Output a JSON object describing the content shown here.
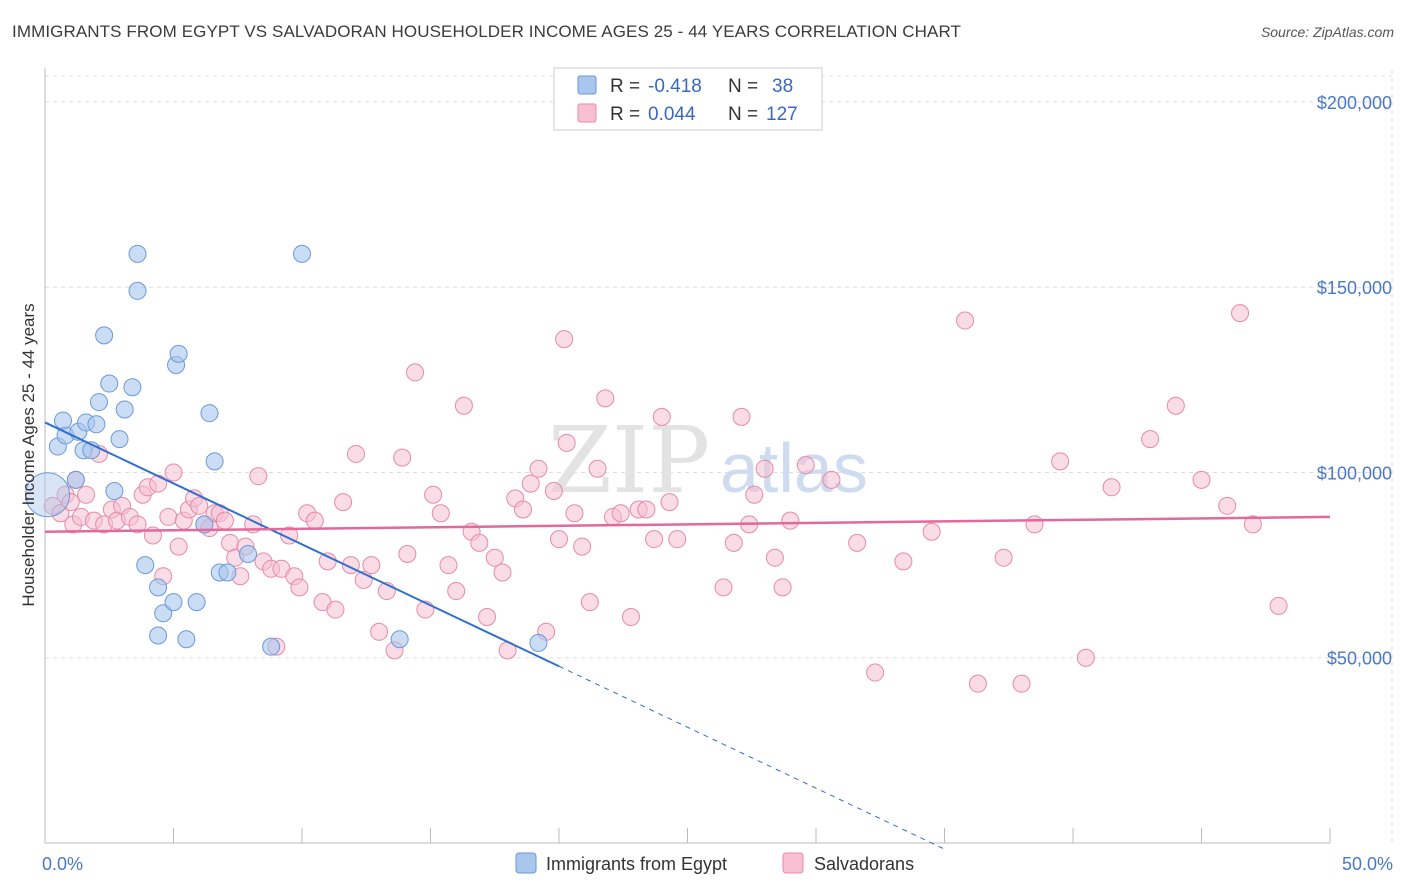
{
  "title": "IMMIGRANTS FROM EGYPT VS SALVADORAN HOUSEHOLDER INCOME AGES 25 - 44 YEARS CORRELATION CHART",
  "source": "Source: ZipAtlas.com",
  "watermark": {
    "zip": "ZIP",
    "atlas": "atlas"
  },
  "colors": {
    "egypt_fill": "#a9c6ec",
    "egypt_stroke": "#6a9ad8",
    "egypt_line": "#2f6fd0",
    "salv_fill": "#f6c0d2",
    "salv_stroke": "#e68aa8",
    "salv_line": "#e2699a",
    "grid": "#dddddd",
    "tick_text": "#4a78c8"
  },
  "stats": {
    "r_label": "R =",
    "n_label": "N =",
    "egypt": {
      "r": "-0.418",
      "n": "38"
    },
    "salvadoran": {
      "r": "0.044",
      "n": "127"
    }
  },
  "legend": {
    "egypt": "Immigrants from Egypt",
    "salvadoran": "Salvadorans"
  },
  "chart_data": {
    "type": "scatter",
    "title": "IMMIGRANTS FROM EGYPT VS SALVADORAN HOUSEHOLDER INCOME AGES 25 - 44 YEARS CORRELATION CHART",
    "xlabel": "",
    "ylabel": "Householder Income Ages 25 - 44 years",
    "xlim": [
      0,
      50
    ],
    "ylim": [
      0,
      207000
    ],
    "x_tick_labels": [
      "0.0%",
      "50.0%"
    ],
    "y_ticks": [
      50000,
      100000,
      150000,
      200000
    ],
    "y_tick_labels": [
      "$50,000",
      "$100,000",
      "$150,000",
      "$200,000"
    ],
    "grid": true,
    "series": [
      {
        "name": "Immigrants from Egypt",
        "trend": {
          "x0": 0,
          "y0": 113500,
          "x1": 20,
          "y1": 47700,
          "dashed_to_x": 35
        },
        "points": [
          [
            0.1,
            94000
          ],
          [
            0.5,
            107000
          ],
          [
            0.8,
            110000
          ],
          [
            0.7,
            114000
          ],
          [
            1.3,
            111000
          ],
          [
            1.6,
            113500
          ],
          [
            2.0,
            113000
          ],
          [
            1.5,
            106000
          ],
          [
            1.8,
            106000
          ],
          [
            2.1,
            119000
          ],
          [
            2.3,
            137000
          ],
          [
            2.5,
            124000
          ],
          [
            2.9,
            109000
          ],
          [
            3.1,
            117000
          ],
          [
            3.4,
            123000
          ],
          [
            3.6,
            149000
          ],
          [
            3.6,
            159000
          ],
          [
            5.1,
            129000
          ],
          [
            5.2,
            132000
          ],
          [
            6.4,
            116000
          ],
          [
            6.6,
            103000
          ],
          [
            1.2,
            98000
          ],
          [
            2.7,
            95000
          ],
          [
            3.9,
            75000
          ],
          [
            4.4,
            69000
          ],
          [
            4.6,
            62000
          ],
          [
            4.4,
            56000
          ],
          [
            5.0,
            65000
          ],
          [
            5.5,
            55000
          ],
          [
            5.9,
            65000
          ],
          [
            6.2,
            86000
          ],
          [
            6.8,
            73000
          ],
          [
            7.1,
            73000
          ],
          [
            7.9,
            78000
          ],
          [
            8.8,
            53000
          ],
          [
            10.0,
            159000
          ],
          [
            13.8,
            55000
          ],
          [
            19.2,
            54000
          ]
        ]
      },
      {
        "name": "Salvadorans",
        "trend": {
          "x0": 0,
          "y0": 84000,
          "x1": 50,
          "y1": 88000
        },
        "points": [
          [
            0.3,
            91000
          ],
          [
            0.6,
            89000
          ],
          [
            0.8,
            94000
          ],
          [
            1.0,
            92000
          ],
          [
            1.1,
            86000
          ],
          [
            1.2,
            98000
          ],
          [
            1.4,
            88000
          ],
          [
            1.6,
            94000
          ],
          [
            1.9,
            87000
          ],
          [
            2.1,
            105000
          ],
          [
            2.3,
            86000
          ],
          [
            2.6,
            90000
          ],
          [
            2.8,
            87000
          ],
          [
            3.0,
            91000
          ],
          [
            3.3,
            88000
          ],
          [
            3.6,
            86000
          ],
          [
            3.8,
            94000
          ],
          [
            4.0,
            96000
          ],
          [
            4.2,
            83000
          ],
          [
            4.4,
            97000
          ],
          [
            4.6,
            72000
          ],
          [
            4.8,
            88000
          ],
          [
            5.0,
            100000
          ],
          [
            5.2,
            80000
          ],
          [
            5.4,
            87000
          ],
          [
            5.6,
            90000
          ],
          [
            5.8,
            93000
          ],
          [
            6.0,
            91000
          ],
          [
            6.2,
            86000
          ],
          [
            6.4,
            85000
          ],
          [
            6.6,
            89000
          ],
          [
            6.8,
            89000
          ],
          [
            7.0,
            87000
          ],
          [
            7.2,
            81000
          ],
          [
            7.4,
            77000
          ],
          [
            7.6,
            72000
          ],
          [
            7.8,
            80000
          ],
          [
            8.1,
            86000
          ],
          [
            8.3,
            99000
          ],
          [
            8.5,
            76000
          ],
          [
            8.8,
            74000
          ],
          [
            9.0,
            53000
          ],
          [
            9.2,
            74000
          ],
          [
            9.5,
            83000
          ],
          [
            9.7,
            72000
          ],
          [
            9.9,
            69000
          ],
          [
            10.2,
            89000
          ],
          [
            10.5,
            87000
          ],
          [
            10.8,
            65000
          ],
          [
            11.0,
            76000
          ],
          [
            11.3,
            63000
          ],
          [
            11.6,
            92000
          ],
          [
            11.9,
            75000
          ],
          [
            12.1,
            105000
          ],
          [
            12.4,
            71000
          ],
          [
            12.7,
            75000
          ],
          [
            13.0,
            57000
          ],
          [
            13.3,
            68000
          ],
          [
            13.6,
            52000
          ],
          [
            13.9,
            104000
          ],
          [
            14.1,
            78000
          ],
          [
            14.4,
            127000
          ],
          [
            14.8,
            63000
          ],
          [
            15.1,
            94000
          ],
          [
            15.4,
            89000
          ],
          [
            15.7,
            75000
          ],
          [
            16.0,
            68000
          ],
          [
            16.3,
            118000
          ],
          [
            16.6,
            84000
          ],
          [
            16.9,
            81000
          ],
          [
            17.2,
            61000
          ],
          [
            17.5,
            77000
          ],
          [
            17.8,
            73000
          ],
          [
            18.0,
            52000
          ],
          [
            18.3,
            93000
          ],
          [
            18.6,
            90000
          ],
          [
            18.9,
            97000
          ],
          [
            19.2,
            101000
          ],
          [
            19.5,
            57000
          ],
          [
            19.8,
            95000
          ],
          [
            20.0,
            82000
          ],
          [
            20.3,
            108000
          ],
          [
            20.6,
            89000
          ],
          [
            20.9,
            80000
          ],
          [
            21.2,
            65000
          ],
          [
            21.5,
            101000
          ],
          [
            21.8,
            120000
          ],
          [
            22.1,
            88000
          ],
          [
            22.4,
            89000
          ],
          [
            22.8,
            61000
          ],
          [
            23.1,
            90000
          ],
          [
            23.4,
            90000
          ],
          [
            23.7,
            82000
          ],
          [
            24.0,
            115000
          ],
          [
            24.3,
            92000
          ],
          [
            24.6,
            82000
          ],
          [
            26.4,
            69000
          ],
          [
            26.8,
            81000
          ],
          [
            27.1,
            115000
          ],
          [
            27.4,
            86000
          ],
          [
            27.6,
            94000
          ],
          [
            28.0,
            101000
          ],
          [
            28.4,
            77000
          ],
          [
            28.7,
            69000
          ],
          [
            29.0,
            87000
          ],
          [
            29.6,
            102000
          ],
          [
            30.6,
            98000
          ],
          [
            31.6,
            81000
          ],
          [
            32.3,
            46000
          ],
          [
            33.4,
            76000
          ],
          [
            34.5,
            84000
          ],
          [
            35.8,
            141000
          ],
          [
            36.3,
            43000
          ],
          [
            37.3,
            77000
          ],
          [
            38.0,
            43000
          ],
          [
            38.5,
            86000
          ],
          [
            39.5,
            103000
          ],
          [
            40.5,
            50000
          ],
          [
            41.5,
            96000
          ],
          [
            43.0,
            109000
          ],
          [
            44.0,
            118000
          ],
          [
            45.0,
            98000
          ],
          [
            46.0,
            91000
          ],
          [
            46.5,
            143000
          ],
          [
            47.0,
            86000
          ],
          [
            48.0,
            64000
          ],
          [
            20.2,
            136000
          ]
        ]
      }
    ]
  }
}
